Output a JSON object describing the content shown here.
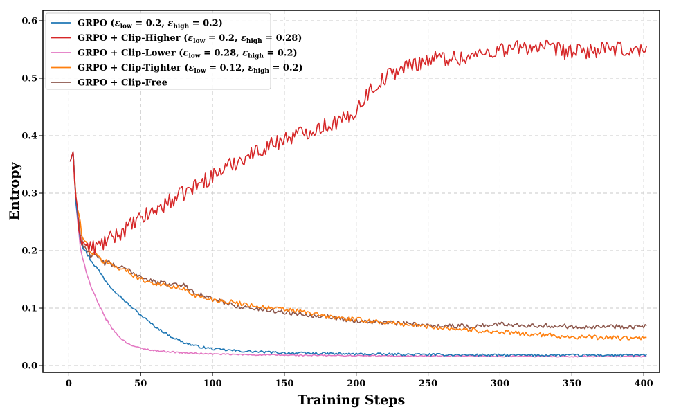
{
  "chart_data": {
    "type": "line",
    "title": "",
    "xlabel": "Training Steps",
    "ylabel": "Entropy",
    "xlim": [
      -18,
      411
    ],
    "ylim": [
      -0.012,
      0.618
    ],
    "xticks": [
      0,
      50,
      100,
      150,
      200,
      250,
      300,
      350,
      400
    ],
    "yticks": [
      0.0,
      0.1,
      0.2,
      0.3,
      0.4,
      0.5,
      0.6
    ],
    "ytick_labels": [
      "0.0",
      "0.1",
      "0.2",
      "0.3",
      "0.4",
      "0.5",
      "0.6"
    ],
    "grid": true,
    "legend_position": "top-left",
    "series": [
      {
        "name": "GRPO",
        "eps_low": "0.2",
        "eps_high": "0.2",
        "color": "#1f77b4",
        "noise": 0.002,
        "x": [
          1,
          3,
          5,
          8,
          10,
          15,
          20,
          25,
          30,
          40,
          50,
          60,
          70,
          80,
          90,
          100,
          120,
          150,
          200,
          250,
          300,
          350,
          402
        ],
        "y": [
          0.355,
          0.372,
          0.285,
          0.22,
          0.205,
          0.185,
          0.168,
          0.15,
          0.135,
          0.11,
          0.088,
          0.068,
          0.052,
          0.04,
          0.033,
          0.029,
          0.025,
          0.022,
          0.02,
          0.019,
          0.018,
          0.018,
          0.018
        ]
      },
      {
        "name": "GRPO + Clip-Higher",
        "eps_low": "0.2",
        "eps_high": "0.28",
        "color": "#d62728",
        "noise": 0.014,
        "x": [
          1,
          3,
          5,
          8,
          10,
          15,
          20,
          30,
          50,
          70,
          100,
          120,
          150,
          175,
          195,
          210,
          225,
          240,
          255,
          275,
          300,
          325,
          350,
          375,
          402
        ],
        "y": [
          0.355,
          0.372,
          0.28,
          0.23,
          0.212,
          0.205,
          0.207,
          0.222,
          0.255,
          0.285,
          0.33,
          0.36,
          0.395,
          0.415,
          0.43,
          0.48,
          0.51,
          0.525,
          0.535,
          0.535,
          0.55,
          0.555,
          0.545,
          0.55,
          0.548
        ]
      },
      {
        "name": "GRPO + Clip-Lower",
        "eps_low": "0.28",
        "eps_high": "0.2",
        "color": "#e377c2",
        "noise": 0.0012,
        "x": [
          1,
          3,
          5,
          8,
          10,
          12,
          15,
          20,
          25,
          30,
          35,
          40,
          45,
          50,
          60,
          70,
          80,
          100,
          120,
          150,
          200,
          300,
          402
        ],
        "y": [
          0.355,
          0.372,
          0.28,
          0.205,
          0.185,
          0.165,
          0.14,
          0.11,
          0.085,
          0.065,
          0.05,
          0.04,
          0.034,
          0.03,
          0.026,
          0.024,
          0.022,
          0.02,
          0.019,
          0.018,
          0.017,
          0.016,
          0.016
        ]
      },
      {
        "name": "GRPO + Clip-Tighter",
        "eps_low": "0.12",
        "eps_high": "0.2",
        "color": "#ff7f0e",
        "noise": 0.004,
        "x": [
          1,
          3,
          5,
          8,
          10,
          15,
          20,
          30,
          40,
          50,
          60,
          70,
          80,
          90,
          100,
          120,
          140,
          160,
          180,
          200,
          250,
          280,
          300,
          350,
          402
        ],
        "y": [
          0.355,
          0.372,
          0.29,
          0.245,
          0.22,
          0.2,
          0.188,
          0.175,
          0.165,
          0.15,
          0.143,
          0.138,
          0.133,
          0.12,
          0.115,
          0.108,
          0.1,
          0.095,
          0.085,
          0.08,
          0.068,
          0.062,
          0.058,
          0.05,
          0.047
        ]
      },
      {
        "name": "GRPO + Clip-Free",
        "eps_low": "",
        "eps_high": "",
        "color": "#8c564b",
        "noise": 0.004,
        "x": [
          1,
          3,
          5,
          8,
          10,
          15,
          20,
          30,
          40,
          50,
          60,
          70,
          80,
          90,
          100,
          120,
          150,
          180,
          200,
          250,
          280,
          300,
          350,
          402
        ],
        "y": [
          0.355,
          0.372,
          0.29,
          0.23,
          0.21,
          0.195,
          0.185,
          0.175,
          0.168,
          0.155,
          0.145,
          0.142,
          0.14,
          0.125,
          0.115,
          0.102,
          0.093,
          0.085,
          0.078,
          0.07,
          0.068,
          0.072,
          0.068,
          0.068
        ]
      }
    ]
  }
}
